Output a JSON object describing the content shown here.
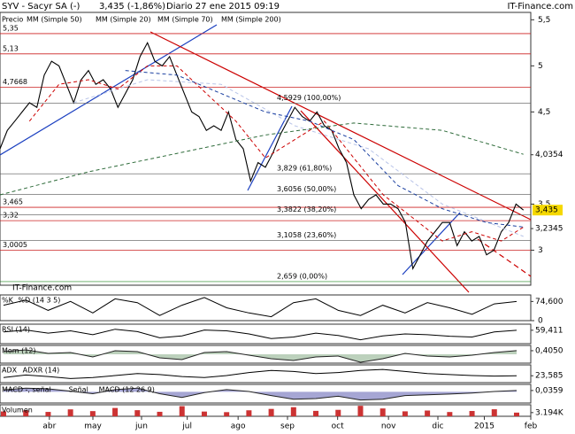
{
  "chart_data": {
    "type": "line",
    "title": "SYV - Sacyr SA (-)",
    "subtitle": "3,435 (-1,86%)",
    "date": "Diario 27 ene 2015 09:19",
    "source": "IT-Finance.com",
    "watermark": "IT-Finance.com",
    "legend_label": "Precio",
    "xlim": [
      0,
      72
    ],
    "xticks": [
      {
        "value": 6.7,
        "label": "abr"
      },
      {
        "value": 12.6,
        "label": "may"
      },
      {
        "value": 19.2,
        "label": "jun"
      },
      {
        "value": 25.4,
        "label": "jul"
      },
      {
        "value": 32.3,
        "label": "ago"
      },
      {
        "value": 39,
        "label": "sep"
      },
      {
        "value": 45.8,
        "label": "oct"
      },
      {
        "value": 52.7,
        "label": "nov"
      },
      {
        "value": 59.4,
        "label": "dic"
      },
      {
        "value": 65.7,
        "label": "2015"
      },
      {
        "value": 72,
        "label": "feb"
      }
    ],
    "ylim": [
      2.62,
      5.58
    ],
    "yticks": [
      {
        "value": 5.5,
        "label": "5,5"
      },
      5,
      {
        "value": 4.5,
        "label": "4,5"
      },
      {
        "value": 3.5,
        "label": "3,5"
      },
      3
    ],
    "series": [
      {
        "name": "Precio",
        "color": "#000000",
        "x": [
          0,
          1,
          2,
          3,
          4,
          5,
          6,
          7,
          8,
          9,
          10,
          11,
          12,
          13,
          14,
          15,
          16,
          17,
          18,
          19,
          20,
          21,
          22,
          23,
          24,
          25,
          26,
          27,
          28,
          29,
          30,
          31,
          32,
          33,
          34,
          35,
          36,
          37,
          38,
          39,
          40,
          41,
          42,
          43,
          44,
          45,
          46,
          47,
          48,
          49,
          50,
          51,
          52,
          53,
          54,
          55,
          56,
          57,
          58,
          59,
          60,
          61,
          62,
          63,
          64,
          65,
          66,
          67,
          68,
          69,
          70,
          71
        ],
        "values": [
          4.1,
          4.3,
          4.4,
          4.5,
          4.6,
          4.55,
          4.9,
          5.05,
          5.0,
          4.8,
          4.6,
          4.85,
          4.95,
          4.8,
          4.85,
          4.75,
          4.55,
          4.7,
          4.85,
          5.1,
          5.25,
          5.05,
          5.0,
          5.1,
          4.9,
          4.7,
          4.5,
          4.45,
          4.3,
          4.35,
          4.3,
          4.5,
          4.2,
          4.1,
          3.75,
          3.95,
          3.9,
          4.05,
          4.25,
          4.4,
          4.55,
          4.45,
          4.4,
          4.5,
          4.35,
          4.3,
          4.1,
          3.95,
          3.6,
          3.45,
          3.55,
          3.6,
          3.5,
          3.5,
          3.45,
          3.3,
          2.8,
          2.95,
          3.1,
          3.2,
          3.3,
          3.3,
          3.05,
          3.2,
          3.1,
          3.15,
          2.95,
          3.0,
          3.2,
          3.3,
          3.5,
          3.435
        ]
      },
      {
        "name": "MM (Simple 50)",
        "color": "#b8c4e8",
        "dash": true,
        "x": [
          10,
          20,
          30,
          40,
          50,
          60,
          71
        ],
        "values": [
          4.6,
          4.85,
          4.8,
          4.35,
          4.1,
          3.5,
          3.15
        ]
      },
      {
        "name": "MM (Simple 20)",
        "color": "#cc0000",
        "dash": true,
        "x": [
          4,
          8,
          12,
          16,
          20,
          24,
          28,
          32,
          36,
          40,
          44,
          48,
          52,
          56,
          60,
          64,
          68,
          71
        ],
        "values": [
          4.4,
          4.8,
          4.85,
          4.75,
          5.0,
          5.0,
          4.7,
          4.4,
          4.0,
          4.2,
          4.4,
          4.0,
          3.6,
          3.35,
          3.1,
          3.2,
          3.1,
          3.25
        ]
      },
      {
        "name": "MM (Simple 70)",
        "color": "#1a3fa0",
        "dash": true,
        "x": [
          17,
          24,
          30,
          36,
          42,
          48,
          54,
          60,
          66,
          71
        ],
        "values": [
          4.95,
          4.9,
          4.7,
          4.5,
          4.4,
          4.2,
          3.7,
          3.45,
          3.3,
          3.25
        ]
      },
      {
        "name": "MM (Simple 200)",
        "color": "#2e6b3a",
        "dash": true,
        "x": [
          0,
          12,
          24,
          36,
          48,
          60,
          71
        ],
        "values": [
          3.6,
          3.85,
          4.05,
          4.25,
          4.38,
          4.3,
          4.04
        ]
      }
    ],
    "levels": [
      {
        "value": 5.35,
        "label": "5,35"
      },
      {
        "value": 5.13,
        "label": "5,13"
      },
      {
        "value": 4.7668,
        "label": "4,7668"
      },
      {
        "value": 3.465,
        "label": "3,465"
      },
      {
        "value": 3.32,
        "label": "3,32"
      },
      {
        "value": 3.0005,
        "label": "3,0005"
      }
    ],
    "fib": [
      {
        "value": 4.5929,
        "label": "4,5929 (100,00%)"
      },
      {
        "value": 3.829,
        "label": "3,829 (61,80%)"
      },
      {
        "value": 3.6056,
        "label": "3,6056 (50,00%)"
      },
      {
        "value": 3.3822,
        "label": "3,3822 (38,20%)"
      },
      {
        "value": 3.1058,
        "label": "3,1058 (23,60%)"
      },
      {
        "value": 2.659,
        "label": "2,659 (0,00%)"
      }
    ],
    "right_labels": [
      {
        "value": 4.0354,
        "label": "4,0354"
      },
      {
        "value": 3.435,
        "label": "3,435"
      },
      {
        "value": 3.2345,
        "label": "3,2345"
      }
    ],
    "indicators": [
      {
        "labels": [
          "%K",
          "%D (14 3 5)"
        ],
        "ylim": [
          0,
          100
        ],
        "yticks": [
          0
        ],
        "kind": "line",
        "color": "#000000",
        "value_label": "74,600",
        "values": [
          60,
          80,
          40,
          75,
          30,
          85,
          70,
          20,
          60,
          90,
          50,
          30,
          15,
          70,
          85,
          40,
          20,
          60,
          30,
          70,
          50,
          25,
          65,
          74.6
        ]
      },
      {
        "labels": [
          "RSI (14)"
        ],
        "ylim": [
          25,
          75
        ],
        "kind": "line",
        "color": "#000000",
        "value_label": "59,411",
        "values": [
          55,
          60,
          52,
          58,
          48,
          62,
          56,
          40,
          45,
          60,
          58,
          50,
          38,
          42,
          52,
          46,
          35,
          45,
          50,
          48,
          44,
          42,
          55,
          59.411
        ]
      },
      {
        "labels": [
          "Mom (12)"
        ],
        "ylim": [
          -1,
          1
        ],
        "kind": "area",
        "color": "#6a9a6a",
        "value_label": "0,4050",
        "values": [
          0.3,
          0.5,
          0.1,
          0.2,
          -0.3,
          0.4,
          0.3,
          -0.4,
          -0.6,
          0.2,
          0.3,
          -0.1,
          -0.5,
          -0.7,
          -0.3,
          -0.2,
          -0.9,
          -0.5,
          0.1,
          -0.2,
          -0.3,
          -0.1,
          0.2,
          0.405
        ]
      },
      {
        "labels": [
          "ADX",
          "ADXR (14)"
        ],
        "ylim": [
          10,
          45
        ],
        "kind": "line",
        "color": "#000000",
        "value_label": "23,585",
        "values": [
          20,
          25,
          22,
          18,
          20,
          24,
          28,
          26,
          22,
          20,
          24,
          30,
          34,
          32,
          28,
          30,
          34,
          36,
          32,
          28,
          26,
          24,
          23,
          23.585
        ]
      },
      {
        "labels": [
          "MACD -, señal",
          "Señal",
          "MACD (12 26 9)"
        ],
        "ylim": [
          -0.3,
          0.2
        ],
        "kind": "area",
        "color": "#3a3aa0",
        "value_label": "0,0359",
        "values": [
          0.05,
          0.1,
          0.08,
          0.02,
          -0.05,
          0.06,
          0.1,
          -0.05,
          -0.15,
          -0.02,
          0.06,
          0.01,
          -0.1,
          -0.2,
          -0.18,
          -0.12,
          -0.22,
          -0.2,
          -0.1,
          -0.08,
          -0.06,
          -0.03,
          0.01,
          0.0359
        ]
      },
      {
        "labels": [
          "Volumen"
        ],
        "ylim": [
          0,
          10000
        ],
        "kind": "bar",
        "color": "#cc3333",
        "value_label": "3.194K",
        "values": [
          4200,
          5100,
          3800,
          6000,
          4500,
          7200,
          5300,
          3900,
          8800,
          4100,
          3600,
          5200,
          6400,
          7900,
          4700,
          5600,
          9100,
          6800,
          4300,
          5000,
          3700,
          4600,
          6100,
          3194
        ]
      }
    ]
  }
}
